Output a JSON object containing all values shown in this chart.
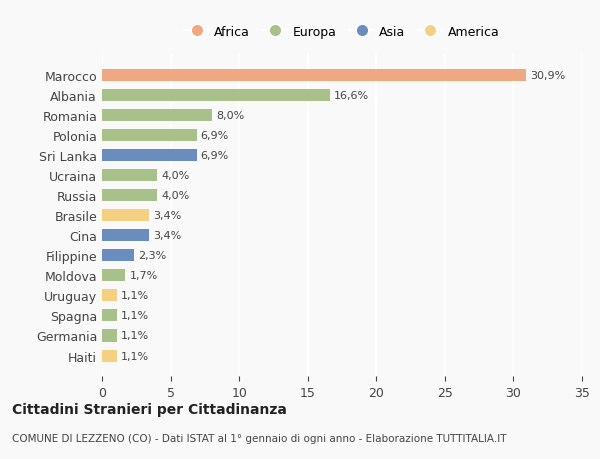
{
  "countries": [
    "Marocco",
    "Albania",
    "Romania",
    "Polonia",
    "Sri Lanka",
    "Ucraina",
    "Russia",
    "Brasile",
    "Cina",
    "Filippine",
    "Moldova",
    "Uruguay",
    "Spagna",
    "Germania",
    "Haiti"
  ],
  "values": [
    30.9,
    16.6,
    8.0,
    6.9,
    6.9,
    4.0,
    4.0,
    3.4,
    3.4,
    2.3,
    1.7,
    1.1,
    1.1,
    1.1,
    1.1
  ],
  "labels": [
    "30,9%",
    "16,6%",
    "8,0%",
    "6,9%",
    "6,9%",
    "4,0%",
    "4,0%",
    "3,4%",
    "3,4%",
    "2,3%",
    "1,7%",
    "1,1%",
    "1,1%",
    "1,1%",
    "1,1%"
  ],
  "continents": [
    "Africa",
    "Europa",
    "Europa",
    "Europa",
    "Asia",
    "Europa",
    "Europa",
    "America",
    "Asia",
    "Asia",
    "Europa",
    "America",
    "Europa",
    "Europa",
    "America"
  ],
  "colors": {
    "Africa": "#F0A882",
    "Europa": "#A8C08A",
    "Asia": "#6B8CBE",
    "America": "#F5D080"
  },
  "legend_order": [
    "Africa",
    "Europa",
    "Asia",
    "America"
  ],
  "xlim": [
    0,
    35
  ],
  "xticks": [
    0,
    5,
    10,
    15,
    20,
    25,
    30,
    35
  ],
  "title": "Cittadini Stranieri per Cittadinanza",
  "subtitle": "COMUNE DI LEZZENO (CO) - Dati ISTAT al 1° gennaio di ogni anno - Elaborazione TUTTITALIA.IT",
  "background_color": "#f9f9f9",
  "grid_color": "#ffffff",
  "bar_height": 0.6
}
